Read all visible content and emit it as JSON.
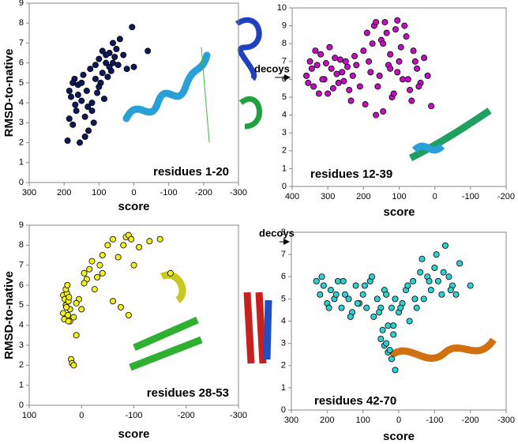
{
  "chart_data": [
    {
      "type": "scatter",
      "xlabel": "score",
      "ylabel": "RMSD-to-native",
      "annotation": "residues 1-20",
      "color": "#0d1a5a",
      "xlim": [
        300,
        -300
      ],
      "xticks": [
        300,
        200,
        100,
        0,
        -100,
        -200,
        -300
      ],
      "ylim": [
        0,
        9
      ],
      "yticks": [
        0,
        1,
        2,
        3,
        4,
        5,
        6,
        7,
        8,
        9
      ],
      "x": [
        190,
        185,
        180,
        175,
        170,
        165,
        160,
        155,
        150,
        145,
        140,
        135,
        130,
        125,
        120,
        115,
        110,
        105,
        100,
        95,
        90,
        85,
        80,
        75,
        70,
        65,
        60,
        55,
        50,
        45,
        40,
        30,
        20,
        5,
        0,
        -40,
        185,
        175,
        168,
        160,
        150,
        140,
        132,
        120,
        110,
        100,
        90,
        80,
        70,
        60
      ],
      "values": [
        2.1,
        3.2,
        4.3,
        2.9,
        5.2,
        3.6,
        4.9,
        2.0,
        4.1,
        5.4,
        3.3,
        4.6,
        2.6,
        5.7,
        4.0,
        3.0,
        5.9,
        4.5,
        6.2,
        5.0,
        6.6,
        4.2,
        6.0,
        5.3,
        6.5,
        5.6,
        7.0,
        6.3,
        6.7,
        5.9,
        7.2,
        6.4,
        5.7,
        7.8,
        5.8,
        6.6,
        4.6,
        5.0,
        3.9,
        4.4,
        5.0,
        2.3,
        3.8,
        3.6,
        5.2,
        4.8,
        5.5,
        6.4,
        5.8,
        6.0
      ]
    },
    {
      "type": "scatter",
      "xlabel": "score",
      "annotation": "residues 12-39",
      "callout": "decoys",
      "color": "#c010c0",
      "xlim": [
        400,
        -200
      ],
      "xticks": [
        400,
        300,
        200,
        100,
        0,
        -100,
        -200
      ],
      "ylim": [
        0,
        10
      ],
      "yticks": [
        0,
        1,
        2,
        3,
        4,
        5,
        6,
        7,
        8,
        9,
        10
      ],
      "x": [
        360,
        350,
        340,
        330,
        320,
        310,
        300,
        290,
        280,
        270,
        260,
        250,
        240,
        230,
        220,
        210,
        355,
        345,
        335,
        325,
        315,
        305,
        295,
        285,
        275,
        265,
        255,
        245,
        235,
        225,
        200,
        190,
        180,
        170,
        160,
        150,
        140,
        130,
        120,
        110,
        100,
        90,
        80,
        70,
        60,
        50,
        40,
        30,
        195,
        185,
        175,
        165,
        155,
        145,
        135,
        125,
        115,
        105,
        95,
        85,
        75,
        65,
        55,
        45,
        20,
        10,
        165,
        145,
        125,
        105
      ],
      "values": [
        6.2,
        7.0,
        5.6,
        6.8,
        7.4,
        6.0,
        5.2,
        6.6,
        7.2,
        5.8,
        6.4,
        7.0,
        5.4,
        6.2,
        6.8,
        5.6,
        5.8,
        6.6,
        7.6,
        5.2,
        6.0,
        6.9,
        7.8,
        5.5,
        6.3,
        7.1,
        5.9,
        6.7,
        4.8,
        7.3,
        7.6,
        8.6,
        6.4,
        9.0,
        5.6,
        8.2,
        9.2,
        6.8,
        5.0,
        8.8,
        7.0,
        6.0,
        8.4,
        5.4,
        7.6,
        6.6,
        5.8,
        7.2,
        4.6,
        7.0,
        8.0,
        9.2,
        6.2,
        4.2,
        8.6,
        7.4,
        5.2,
        6.4,
        7.8,
        9.0,
        6.0,
        4.8,
        7.0,
        5.6,
        6.2,
        4.5,
        4.0,
        8.0,
        6.6,
        9.3
      ]
    },
    {
      "type": "scatter",
      "xlabel": "score",
      "ylabel": "RMSD-to-native",
      "annotation": "residues 28-53",
      "color": "#f0f020",
      "xlim": [
        100,
        -300
      ],
      "xticks": [
        100,
        0,
        -100,
        -200,
        -300
      ],
      "ylim": [
        0,
        9
      ],
      "yticks": [
        0,
        1,
        2,
        3,
        4,
        5,
        6,
        7,
        8,
        9
      ],
      "x": [
        35,
        32,
        30,
        28,
        25,
        22,
        35,
        30,
        27,
        24,
        33,
        29,
        26,
        22,
        20,
        18,
        15,
        10,
        5,
        0,
        -5,
        -10,
        -15,
        -20,
        -25,
        -30,
        -35,
        -40,
        -50,
        -60,
        -70,
        -80,
        -85,
        -90,
        -95,
        -100,
        -110,
        -130,
        -150,
        -170,
        25,
        15,
        10,
        -5,
        -40,
        -60,
        -75,
        -90
      ],
      "values": [
        5.5,
        5.3,
        5.0,
        5.6,
        5.2,
        4.8,
        4.6,
        5.8,
        6.0,
        5.4,
        4.3,
        4.9,
        4.5,
        4.2,
        2.3,
        2.1,
        2.0,
        3.5,
        5.3,
        4.8,
        6.6,
        6.3,
        6.8,
        7.2,
        5.8,
        6.4,
        7.0,
        7.5,
        8.0,
        8.3,
        7.4,
        8.0,
        8.4,
        8.5,
        8.3,
        7.0,
        7.9,
        8.2,
        8.3,
        6.6,
        4.2,
        4.4,
        5.1,
        6.1,
        6.6,
        5.2,
        4.9,
        4.5
      ]
    },
    {
      "type": "scatter",
      "xlabel": "score",
      "annotation": "residues 42-70",
      "callout": "decoys",
      "color": "#30d0d0",
      "xlim": [
        300,
        -300
      ],
      "xticks": [
        300,
        200,
        100,
        0,
        -100,
        -200,
        -300
      ],
      "ylim": [
        0,
        8
      ],
      "yticks": [
        0,
        1,
        2,
        3,
        4,
        5,
        6,
        7,
        8
      ],
      "x": [
        230,
        220,
        210,
        200,
        190,
        180,
        170,
        160,
        150,
        140,
        130,
        120,
        110,
        100,
        90,
        80,
        70,
        60,
        50,
        40,
        30,
        20,
        10,
        0,
        -10,
        -20,
        -30,
        -40,
        -50,
        -60,
        -70,
        -80,
        -90,
        -100,
        -110,
        -120,
        -130,
        -140,
        -150,
        -160,
        -170,
        -200,
        215,
        195,
        175,
        155,
        135,
        115,
        95,
        75,
        55,
        35,
        15,
        -5,
        -25,
        -45,
        -65,
        -85,
        -105,
        -125,
        -145,
        50,
        40,
        30,
        20,
        10,
        45,
        35,
        25,
        15
      ],
      "values": [
        5.8,
        5.2,
        5.6,
        4.8,
        5.4,
        5.0,
        5.8,
        4.6,
        5.2,
        5.0,
        4.4,
        5.6,
        4.8,
        5.2,
        4.6,
        5.8,
        4.2,
        5.0,
        4.6,
        5.4,
        3.8,
        4.6,
        5.0,
        4.4,
        4.8,
        5.4,
        4.0,
        5.8,
        4.6,
        6.2,
        5.0,
        6.0,
        5.4,
        6.4,
        5.8,
        5.2,
        7.4,
        6.0,
        5.6,
        5.2,
        6.6,
        5.6,
        6.0,
        4.6,
        5.2,
        5.8,
        4.2,
        4.8,
        5.6,
        6.0,
        4.4,
        5.2,
        3.8,
        4.6,
        5.6,
        5.0,
        6.8,
        5.8,
        7.0,
        6.2,
        5.4,
        3.2,
        2.9,
        2.6,
        2.3,
        1.8,
        3.6,
        3.0,
        2.7,
        3.4
      ]
    }
  ]
}
